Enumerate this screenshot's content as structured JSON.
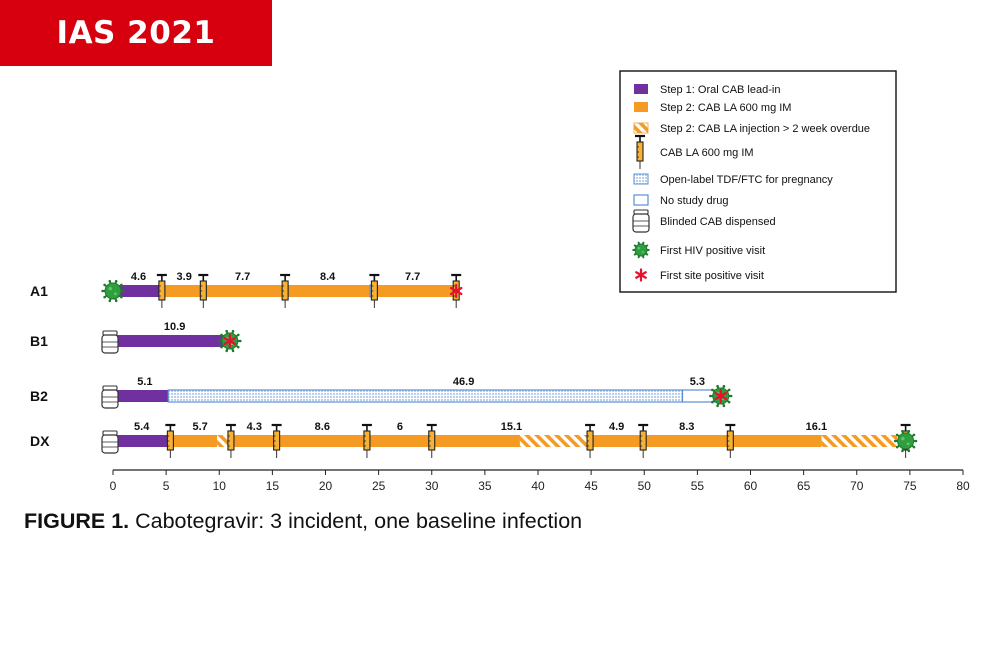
{
  "banner": {
    "text": "IAS 2021",
    "color": "#d7000f"
  },
  "caption": {
    "label": "FIGURE 1.",
    "text": " Cabotegravir: 3 incident, one baseline infection"
  },
  "colors": {
    "oral_lead_in": "#7030a0",
    "cab_la": "#f59a23",
    "tdf_ftc_fill": "#dbe8f5",
    "tdf_ftc_border": "#5b8ed6",
    "no_study_drug_border": "#5b8ed6",
    "hiv_virus": "#2e9e3e",
    "site_positive": "#e8112d"
  },
  "legend": {
    "items": [
      {
        "label": "Step 1: Oral CAB lead-in",
        "icon": "purple-swatch"
      },
      {
        "label": "Step 2: CAB LA 600 mg IM",
        "icon": "orange-swatch"
      },
      {
        "label": "Step 2: CAB LA injection > 2 week overdue",
        "icon": "hatched-orange-swatch"
      },
      {
        "label": "CAB LA 600 mg IM",
        "icon": "syringe-icon"
      },
      {
        "label": "Open-label TDF/FTC for pregnancy",
        "icon": "dotted-blue-swatch"
      },
      {
        "label": "No study drug",
        "icon": "open-blue-swatch"
      },
      {
        "label": "Blinded CAB dispensed",
        "icon": "pill-bottle-icon"
      },
      {
        "label": "First HIV positive visit",
        "icon": "virus-icon"
      },
      {
        "label": "First site positive visit",
        "icon": "asterisk-icon"
      }
    ]
  },
  "chart_data": {
    "type": "timeline",
    "x_ticks": [
      "0",
      "5",
      "10",
      "15",
      "20",
      "25",
      "30",
      "35",
      "40",
      "45",
      "50",
      "55",
      "60",
      "65",
      "70",
      "75",
      "80"
    ],
    "xlim": [
      0,
      80
    ],
    "rows": [
      {
        "name": "A1",
        "segments": [
          {
            "type": "oral",
            "start": 0.2,
            "end": 4.6
          },
          {
            "type": "cab",
            "start": 4.6,
            "end": 24.2
          },
          {
            "type": "none",
            "start": 24.2,
            "end": 24.8
          },
          {
            "type": "cab",
            "start": 24.8,
            "end": 32.5
          }
        ],
        "injections": [
          4.6,
          8.5,
          16.2,
          24.6,
          32.3
        ],
        "interval_labels": [
          {
            "text": "4.6",
            "x": 2.4
          },
          {
            "text": "3.9",
            "x": 6.7
          },
          {
            "text": "7.7",
            "x": 12.2
          },
          {
            "text": "8.4",
            "x": 20.2
          },
          {
            "text": "7.7",
            "x": 28.2
          }
        ],
        "virus": [
          0
        ],
        "asterisk": [
          32.3
        ],
        "bottle": []
      },
      {
        "name": "B1",
        "segments": [
          {
            "type": "oral",
            "start": 0.4,
            "end": 11.0
          }
        ],
        "injections": [],
        "interval_labels": [
          {
            "text": "10.9",
            "x": 5.8
          }
        ],
        "virus": [
          11.0
        ],
        "asterisk": [
          11.0
        ],
        "bottle": [
          0
        ]
      },
      {
        "name": "B2",
        "segments": [
          {
            "type": "oral",
            "start": 0.4,
            "end": 5.2
          },
          {
            "type": "tdf",
            "start": 5.2,
            "end": 53.6
          },
          {
            "type": "none",
            "start": 53.6,
            "end": 56.8
          }
        ],
        "injections": [],
        "interval_labels": [
          {
            "text": "5.1",
            "x": 3.0
          },
          {
            "text": "46.9",
            "x": 33.0
          },
          {
            "text": "5.3",
            "x": 55.0
          }
        ],
        "virus": [
          57.2
        ],
        "asterisk": [
          57.2
        ],
        "bottle": [
          0
        ]
      },
      {
        "name": "DX",
        "segments": [
          {
            "type": "oral",
            "start": 0.4,
            "end": 5.4
          },
          {
            "type": "cab",
            "start": 5.4,
            "end": 9.8
          },
          {
            "type": "overdue",
            "start": 9.8,
            "end": 10.8
          },
          {
            "type": "cab",
            "start": 10.8,
            "end": 38.3
          },
          {
            "type": "overdue",
            "start": 38.3,
            "end": 45.0
          },
          {
            "type": "cab",
            "start": 45.0,
            "end": 66.7
          },
          {
            "type": "overdue",
            "start": 66.7,
            "end": 73.8
          }
        ],
        "injections": [
          5.4,
          11.1,
          15.4,
          23.9,
          30.0,
          44.9,
          49.9,
          58.1,
          74.6
        ],
        "interval_labels": [
          {
            "text": "5.4",
            "x": 2.7
          },
          {
            "text": "5.7",
            "x": 8.2
          },
          {
            "text": "4.3",
            "x": 13.3
          },
          {
            "text": "8.6",
            "x": 19.7
          },
          {
            "text": "6",
            "x": 27.0
          },
          {
            "text": "15.1",
            "x": 37.5
          },
          {
            "text": "4.9",
            "x": 47.4
          },
          {
            "text": "8.3",
            "x": 54.0
          },
          {
            "text": "16.1",
            "x": 66.2
          }
        ],
        "virus": [
          74.6
        ],
        "asterisk": [],
        "bottle": [
          0
        ]
      }
    ]
  }
}
